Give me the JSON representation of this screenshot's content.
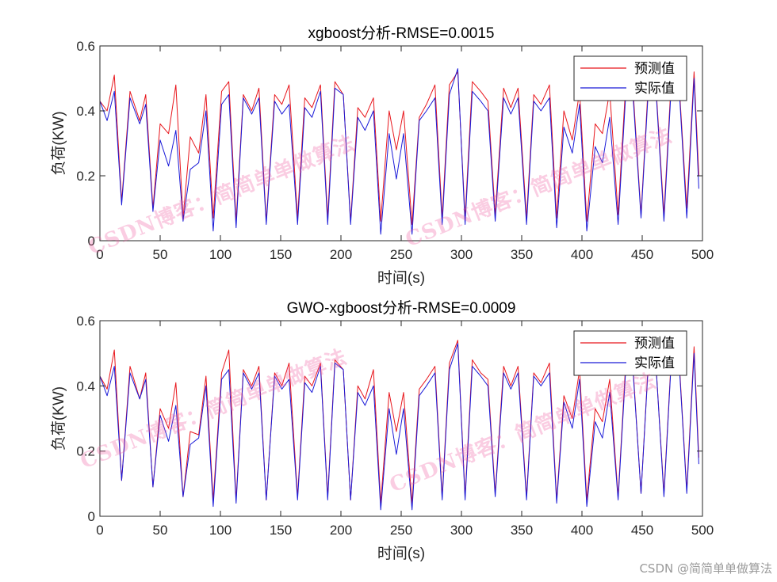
{
  "watermark": "CSDN博客：简简单单做算法",
  "credit": "CSDN @简简单单做算法",
  "colors": {
    "predicted": "#e8161c",
    "actual": "#1a1ad8",
    "axis": "#262626",
    "watermark": "#f05aa0"
  },
  "chart_data": [
    {
      "type": "line",
      "title": "xgboost分析-RMSE=0.0015",
      "xlabel": "时间(s)",
      "ylabel": "负荷(KW)",
      "xlim": [
        0,
        500
      ],
      "ylim": [
        0,
        0.6
      ],
      "xticks": [
        0,
        50,
        100,
        150,
        200,
        250,
        300,
        350,
        400,
        450,
        500
      ],
      "yticks": [
        0,
        0.2,
        0.4,
        0.6
      ],
      "grid": false,
      "legend": {
        "position": "top-right",
        "entries": [
          "预测值",
          "实际值"
        ]
      },
      "series": [
        {
          "name": "预测值",
          "color": "#e8161c",
          "x": [
            0,
            6,
            12,
            18,
            25,
            33,
            38,
            44,
            50,
            57,
            63,
            69,
            75,
            82,
            88,
            94,
            101,
            107,
            113,
            119,
            126,
            132,
            138,
            145,
            151,
            157,
            164,
            170,
            176,
            183,
            189,
            195,
            202,
            208,
            214,
            220,
            227,
            233,
            240,
            246,
            252,
            259,
            265,
            271,
            278,
            284,
            290,
            297,
            303,
            309,
            316,
            322,
            328,
            335,
            341,
            347,
            354,
            360,
            366,
            373,
            379,
            385,
            392,
            398,
            404,
            411,
            417,
            423,
            430,
            436,
            442,
            449,
            455,
            461,
            468,
            474,
            480,
            487,
            493,
            497
          ],
          "values": [
            0.43,
            0.4,
            0.51,
            0.12,
            0.46,
            0.37,
            0.45,
            0.1,
            0.36,
            0.33,
            0.48,
            0.07,
            0.32,
            0.27,
            0.45,
            0.07,
            0.46,
            0.49,
            0.06,
            0.45,
            0.4,
            0.47,
            0.06,
            0.45,
            0.42,
            0.48,
            0.07,
            0.44,
            0.41,
            0.48,
            0.07,
            0.49,
            0.45,
            0.06,
            0.41,
            0.38,
            0.44,
            0.06,
            0.4,
            0.28,
            0.4,
            0.05,
            0.38,
            0.42,
            0.48,
            0.07,
            0.48,
            0.52,
            0.07,
            0.49,
            0.46,
            0.43,
            0.08,
            0.47,
            0.41,
            0.47,
            0.07,
            0.45,
            0.42,
            0.48,
            0.07,
            0.4,
            0.31,
            0.46,
            0.06,
            0.36,
            0.33,
            0.46,
            0.08,
            0.46,
            0.49,
            0.08,
            0.48,
            0.5,
            0.08,
            0.49,
            0.52,
            0.1,
            0.52,
            0.2
          ]
        },
        {
          "name": "实际值",
          "color": "#1a1ad8",
          "x": [
            0,
            6,
            12,
            18,
            25,
            33,
            38,
            44,
            50,
            57,
            63,
            69,
            75,
            82,
            88,
            94,
            101,
            107,
            113,
            119,
            126,
            132,
            138,
            145,
            151,
            157,
            164,
            170,
            176,
            183,
            189,
            195,
            202,
            208,
            214,
            220,
            227,
            233,
            240,
            246,
            252,
            259,
            265,
            271,
            278,
            284,
            290,
            297,
            303,
            309,
            316,
            322,
            328,
            335,
            341,
            347,
            354,
            360,
            366,
            373,
            379,
            385,
            392,
            398,
            404,
            411,
            417,
            423,
            430,
            436,
            442,
            449,
            455,
            461,
            468,
            474,
            480,
            487,
            493,
            497
          ],
          "values": [
            0.43,
            0.37,
            0.46,
            0.11,
            0.44,
            0.36,
            0.42,
            0.09,
            0.31,
            0.23,
            0.34,
            0.06,
            0.22,
            0.24,
            0.4,
            0.03,
            0.42,
            0.45,
            0.04,
            0.44,
            0.39,
            0.44,
            0.05,
            0.43,
            0.39,
            0.42,
            0.05,
            0.41,
            0.38,
            0.46,
            0.05,
            0.47,
            0.45,
            0.05,
            0.38,
            0.34,
            0.4,
            0.02,
            0.33,
            0.19,
            0.33,
            0.02,
            0.37,
            0.4,
            0.44,
            0.05,
            0.45,
            0.53,
            0.05,
            0.46,
            0.43,
            0.4,
            0.06,
            0.44,
            0.39,
            0.44,
            0.05,
            0.43,
            0.4,
            0.44,
            0.04,
            0.35,
            0.27,
            0.42,
            0.03,
            0.29,
            0.24,
            0.38,
            0.05,
            0.43,
            0.47,
            0.07,
            0.46,
            0.49,
            0.06,
            0.47,
            0.51,
            0.07,
            0.5,
            0.16
          ]
        }
      ]
    },
    {
      "type": "line",
      "title": "GWO-xgboost分析-RMSE=0.0009",
      "xlabel": "时间(s)",
      "ylabel": "负荷(KW)",
      "xlim": [
        0,
        500
      ],
      "ylim": [
        0,
        0.6
      ],
      "xticks": [
        0,
        50,
        100,
        150,
        200,
        250,
        300,
        350,
        400,
        450,
        500
      ],
      "yticks": [
        0,
        0.2,
        0.4,
        0.6
      ],
      "grid": false,
      "legend": {
        "position": "top-right",
        "entries": [
          "预测值",
          "实际值"
        ]
      },
      "series": [
        {
          "name": "预测值",
          "color": "#e8161c",
          "x": [
            0,
            6,
            12,
            18,
            25,
            33,
            38,
            44,
            50,
            57,
            63,
            69,
            75,
            82,
            88,
            94,
            101,
            107,
            113,
            119,
            126,
            132,
            138,
            145,
            151,
            157,
            164,
            170,
            176,
            183,
            189,
            195,
            202,
            208,
            214,
            220,
            227,
            233,
            240,
            246,
            252,
            259,
            265,
            271,
            278,
            284,
            290,
            297,
            303,
            309,
            316,
            322,
            328,
            335,
            341,
            347,
            354,
            360,
            366,
            373,
            379,
            385,
            392,
            398,
            404,
            411,
            417,
            423,
            430,
            436,
            442,
            449,
            455,
            461,
            468,
            474,
            480,
            487,
            493,
            497
          ],
          "values": [
            0.43,
            0.39,
            0.51,
            0.11,
            0.46,
            0.36,
            0.44,
            0.09,
            0.33,
            0.27,
            0.41,
            0.06,
            0.26,
            0.25,
            0.43,
            0.05,
            0.44,
            0.51,
            0.05,
            0.45,
            0.4,
            0.46,
            0.05,
            0.44,
            0.4,
            0.47,
            0.06,
            0.43,
            0.4,
            0.47,
            0.06,
            0.48,
            0.45,
            0.05,
            0.4,
            0.36,
            0.45,
            0.04,
            0.38,
            0.26,
            0.38,
            0.04,
            0.39,
            0.42,
            0.46,
            0.06,
            0.47,
            0.54,
            0.06,
            0.48,
            0.44,
            0.42,
            0.07,
            0.46,
            0.4,
            0.46,
            0.06,
            0.44,
            0.41,
            0.47,
            0.05,
            0.37,
            0.3,
            0.45,
            0.05,
            0.33,
            0.29,
            0.42,
            0.06,
            0.45,
            0.48,
            0.07,
            0.47,
            0.49,
            0.07,
            0.48,
            0.52,
            0.08,
            0.52,
            0.18
          ]
        },
        {
          "name": "实际值",
          "color": "#1a1ad8",
          "x": [
            0,
            6,
            12,
            18,
            25,
            33,
            38,
            44,
            50,
            57,
            63,
            69,
            75,
            82,
            88,
            94,
            101,
            107,
            113,
            119,
            126,
            132,
            138,
            145,
            151,
            157,
            164,
            170,
            176,
            183,
            189,
            195,
            202,
            208,
            214,
            220,
            227,
            233,
            240,
            246,
            252,
            259,
            265,
            271,
            278,
            284,
            290,
            297,
            303,
            309,
            316,
            322,
            328,
            335,
            341,
            347,
            354,
            360,
            366,
            373,
            379,
            385,
            392,
            398,
            404,
            411,
            417,
            423,
            430,
            436,
            442,
            449,
            455,
            461,
            468,
            474,
            480,
            487,
            493,
            497
          ],
          "values": [
            0.43,
            0.37,
            0.46,
            0.11,
            0.44,
            0.36,
            0.42,
            0.09,
            0.31,
            0.23,
            0.34,
            0.06,
            0.22,
            0.24,
            0.4,
            0.03,
            0.42,
            0.45,
            0.04,
            0.44,
            0.39,
            0.44,
            0.05,
            0.43,
            0.39,
            0.42,
            0.05,
            0.41,
            0.38,
            0.46,
            0.05,
            0.47,
            0.45,
            0.05,
            0.38,
            0.34,
            0.4,
            0.02,
            0.33,
            0.19,
            0.33,
            0.02,
            0.37,
            0.4,
            0.44,
            0.05,
            0.45,
            0.53,
            0.05,
            0.46,
            0.43,
            0.4,
            0.06,
            0.44,
            0.39,
            0.44,
            0.05,
            0.43,
            0.4,
            0.44,
            0.04,
            0.35,
            0.27,
            0.42,
            0.03,
            0.29,
            0.24,
            0.38,
            0.05,
            0.43,
            0.47,
            0.07,
            0.46,
            0.49,
            0.06,
            0.47,
            0.51,
            0.07,
            0.5,
            0.16
          ]
        }
      ]
    }
  ]
}
